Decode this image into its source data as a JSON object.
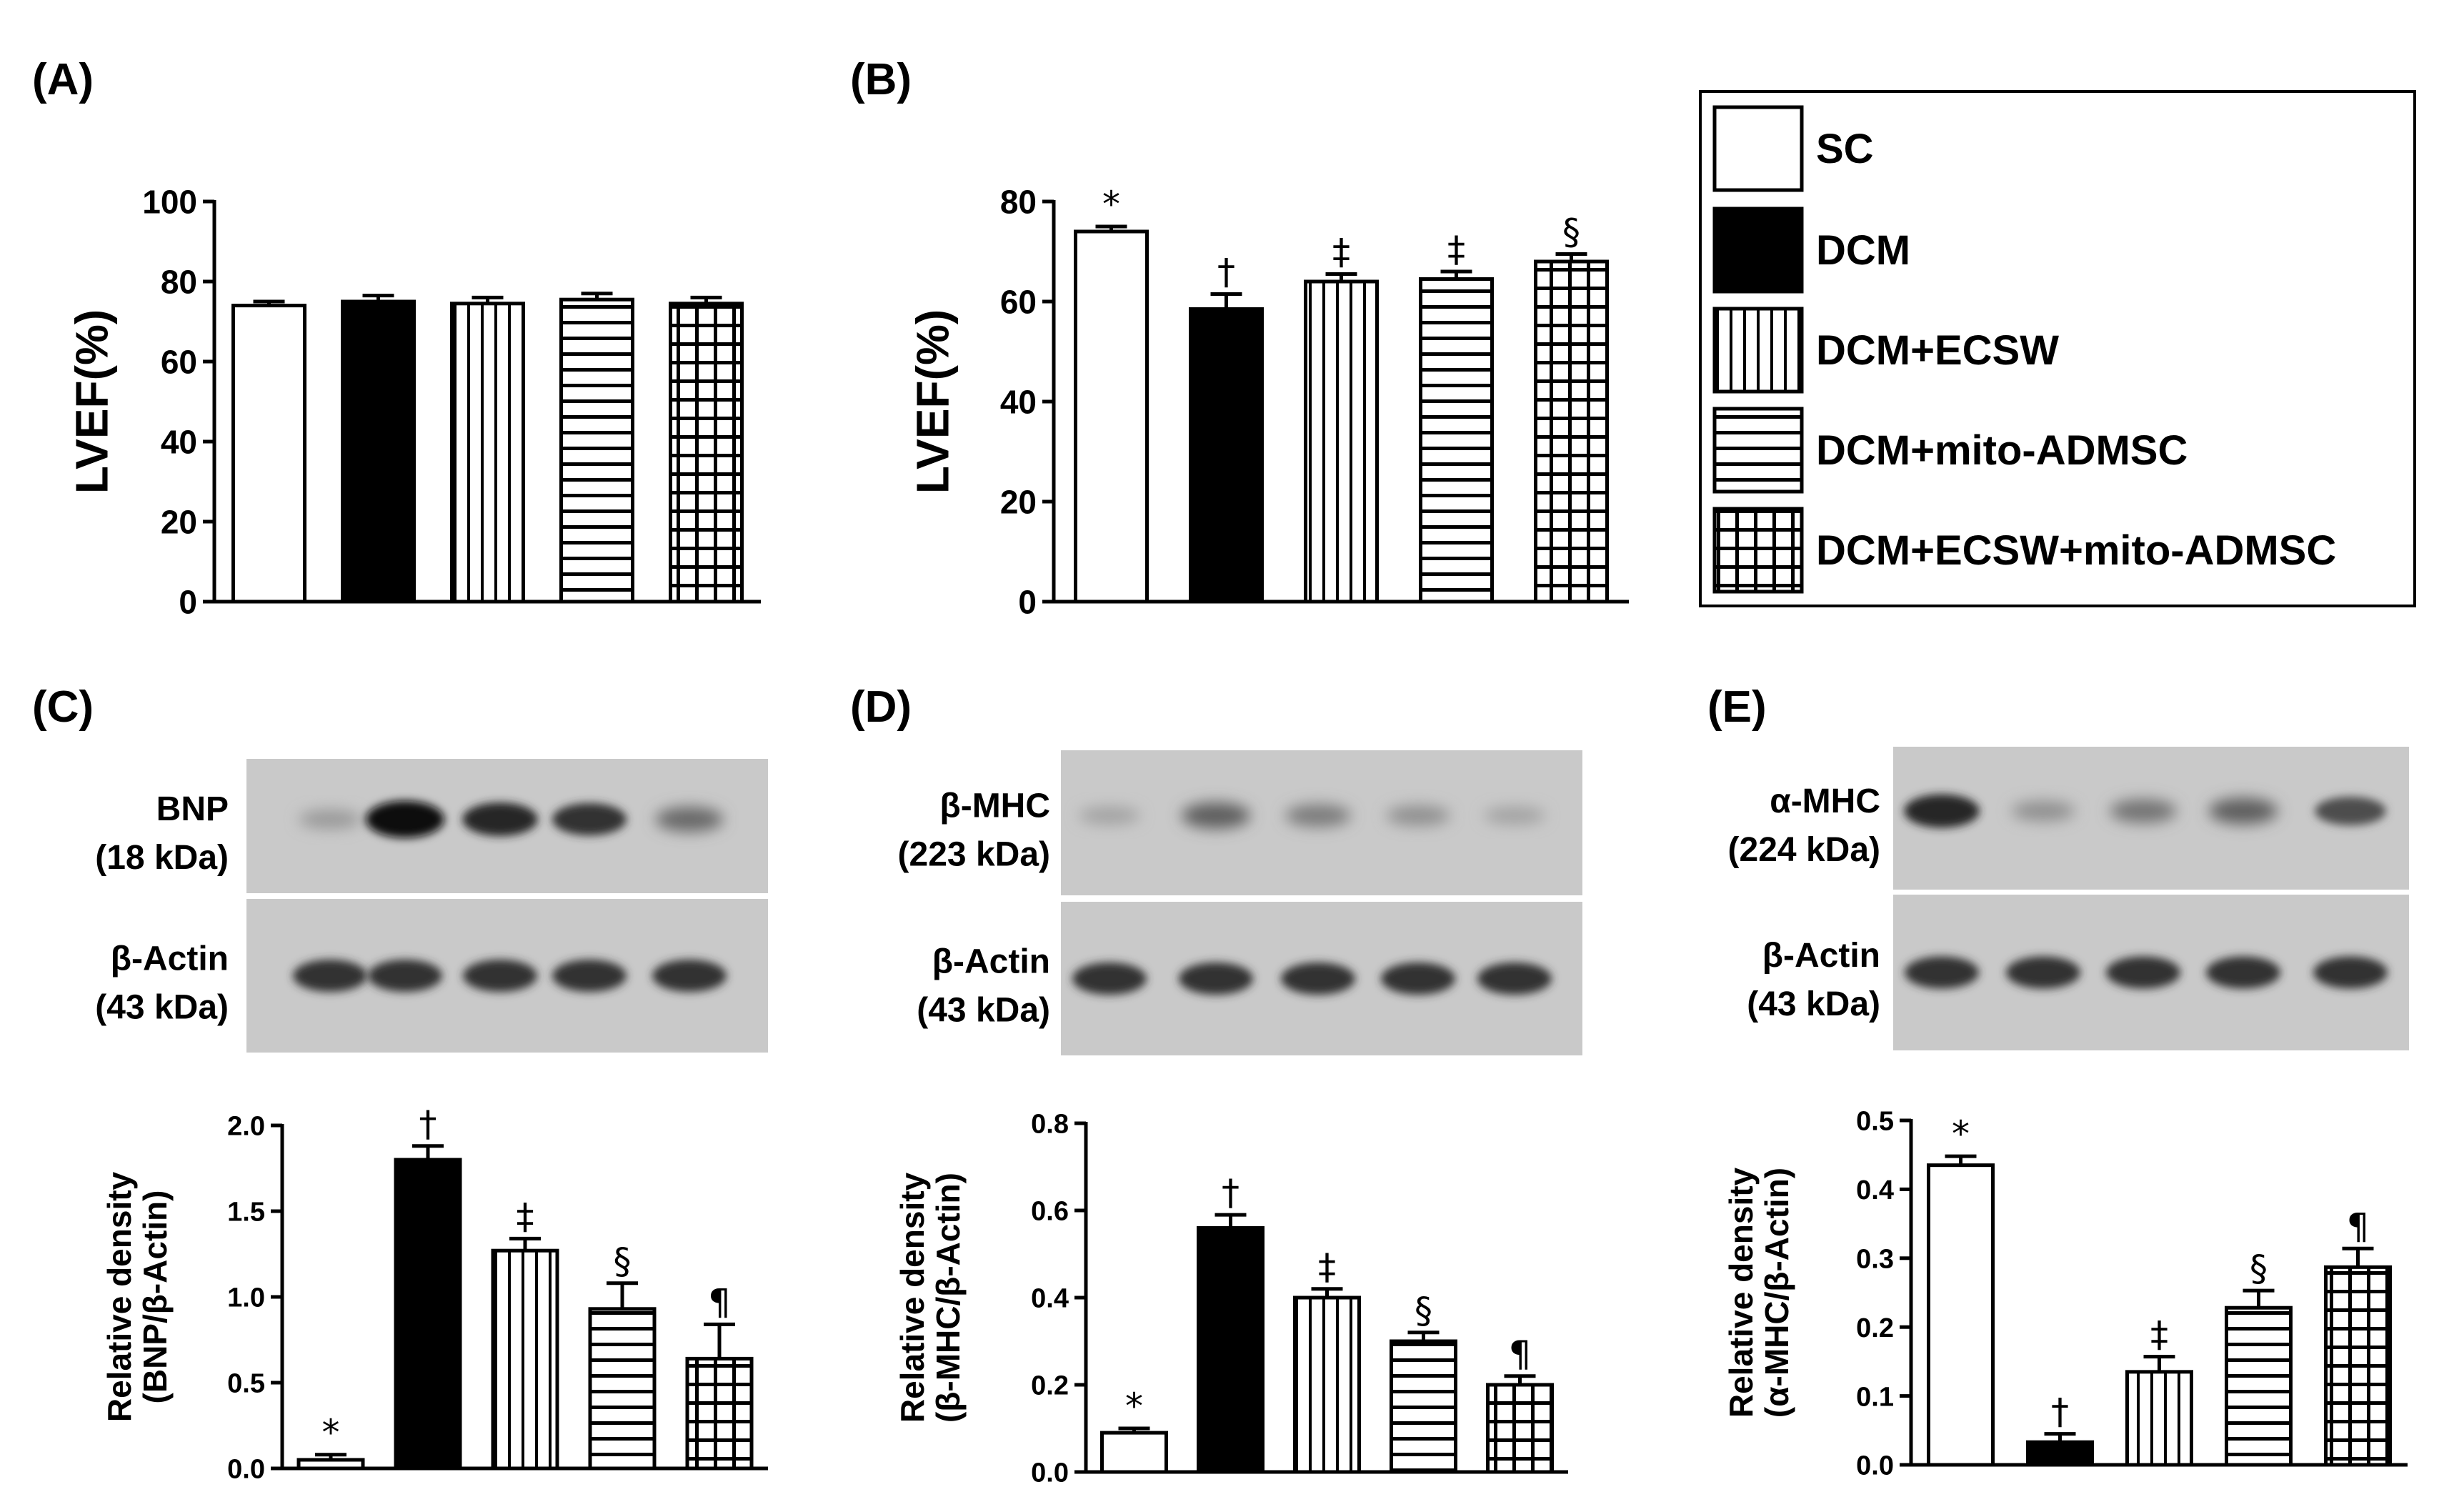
{
  "colors": {
    "ink": "#000000",
    "paper": "#ffffff",
    "blot_bg": "#c9c9c9",
    "band": "#1f1f1f"
  },
  "legend": {
    "items": [
      {
        "label": "SC",
        "pattern": "open"
      },
      {
        "label": "DCM",
        "pattern": "solid"
      },
      {
        "label": "DCM+ECSW",
        "pattern": "vertical-lines"
      },
      {
        "label": "DCM+mito-ADMSC",
        "pattern": "horizontal-lines"
      },
      {
        "label": "DCM+ECSW+mito-ADMSC",
        "pattern": "grid"
      }
    ]
  },
  "chart_data": [
    {
      "panel": "(A)",
      "type": "bar",
      "ylabel": "LVEF(%)",
      "ylim": [
        0,
        100
      ],
      "yticks": [
        "0",
        "20",
        "40",
        "60",
        "80",
        "100"
      ],
      "categories": [
        "SC",
        "DCM",
        "DCM+ECSW",
        "DCM+mito-ADMSC",
        "DCM+ECSW+mito-ADMSC"
      ],
      "values": [
        74,
        75,
        74.5,
        75.5,
        74.5
      ],
      "errors": [
        1,
        1.5,
        1.5,
        1.5,
        1.5
      ],
      "annotations": [
        "",
        "",
        "",
        "",
        ""
      ]
    },
    {
      "panel": "(B)",
      "type": "bar",
      "ylabel": "LVEF(%)",
      "ylim": [
        0,
        80
      ],
      "yticks": [
        "0",
        "20",
        "40",
        "60",
        "80"
      ],
      "categories": [
        "SC",
        "DCM",
        "DCM+ECSW",
        "DCM+mito-ADMSC",
        "DCM+ECSW+mito-ADMSC"
      ],
      "values": [
        74,
        58.5,
        64,
        64.5,
        68
      ],
      "errors": [
        1,
        3,
        1.5,
        1.5,
        1.5
      ],
      "annotations": [
        "*",
        "†",
        "‡",
        "‡",
        "§"
      ]
    },
    {
      "panel": "(C)",
      "type": "bar",
      "ylabel": "Relative density\n(BNP/β-Actin)",
      "ylim": [
        0,
        2.0
      ],
      "yticks": [
        "0.0",
        "0.5",
        "1.0",
        "1.5",
        "2.0"
      ],
      "categories": [
        "SC",
        "DCM",
        "DCM+ECSW",
        "DCM+mito-ADMSC",
        "DCM+ECSW+mito-ADMSC"
      ],
      "values": [
        0.05,
        1.8,
        1.27,
        0.93,
        0.64
      ],
      "errors": [
        0.03,
        0.08,
        0.07,
        0.15,
        0.2
      ],
      "annotations": [
        "*",
        "†",
        "‡",
        "§",
        "¶"
      ],
      "blot": {
        "target": {
          "name": "BNP",
          "kda": "(18 kDa)",
          "intensity": [
            0.25,
            1.0,
            0.85,
            0.8,
            0.5
          ]
        },
        "control": {
          "name": "β-Actin",
          "kda": "(43 kDa)",
          "intensity": [
            0.8,
            0.8,
            0.8,
            0.8,
            0.8
          ]
        }
      }
    },
    {
      "panel": "(D)",
      "type": "bar",
      "ylabel": "Relative density\n(β-MHC/β-Actin)",
      "ylim": [
        0,
        0.8
      ],
      "yticks": [
        "0.0",
        "0.2",
        "0.4",
        "0.6",
        "0.8"
      ],
      "categories": [
        "SC",
        "DCM",
        "DCM+ECSW",
        "DCM+mito-ADMSC",
        "DCM+ECSW+mito-ADMSC"
      ],
      "values": [
        0.09,
        0.56,
        0.4,
        0.3,
        0.2
      ],
      "errors": [
        0.01,
        0.03,
        0.02,
        0.02,
        0.02
      ],
      "annotations": [
        "*",
        "†",
        "‡",
        "§",
        "¶"
      ],
      "blot": {
        "target": {
          "name": "β-MHC",
          "kda": "(223 kDa)",
          "intensity": [
            0.2,
            0.55,
            0.4,
            0.3,
            0.2
          ]
        },
        "control": {
          "name": "β-Actin",
          "kda": "(43 kDa)",
          "intensity": [
            0.8,
            0.8,
            0.8,
            0.8,
            0.8
          ]
        }
      }
    },
    {
      "panel": "(E)",
      "type": "bar",
      "ylabel": "Relative density\n(α-MHC/β-Actin)",
      "ylim": [
        0,
        0.5
      ],
      "yticks": [
        "0.0",
        "0.1",
        "0.2",
        "0.3",
        "0.4",
        "0.5"
      ],
      "categories": [
        "SC",
        "DCM",
        "DCM+ECSW",
        "DCM+mito-ADMSC",
        "DCM+ECSW+mito-ADMSC"
      ],
      "values": [
        0.435,
        0.033,
        0.135,
        0.228,
        0.287
      ],
      "errors": [
        0.013,
        0.012,
        0.022,
        0.025,
        0.027
      ],
      "annotations": [
        "*",
        "†",
        "‡",
        "§",
        "¶"
      ],
      "blot": {
        "target": {
          "name": "α-MHC",
          "kda": "(224 kDa)",
          "intensity": [
            0.85,
            0.3,
            0.45,
            0.55,
            0.65
          ]
        },
        "control": {
          "name": "β-Actin",
          "kda": "(43 kDa)",
          "intensity": [
            0.8,
            0.8,
            0.8,
            0.8,
            0.8
          ]
        }
      }
    }
  ]
}
